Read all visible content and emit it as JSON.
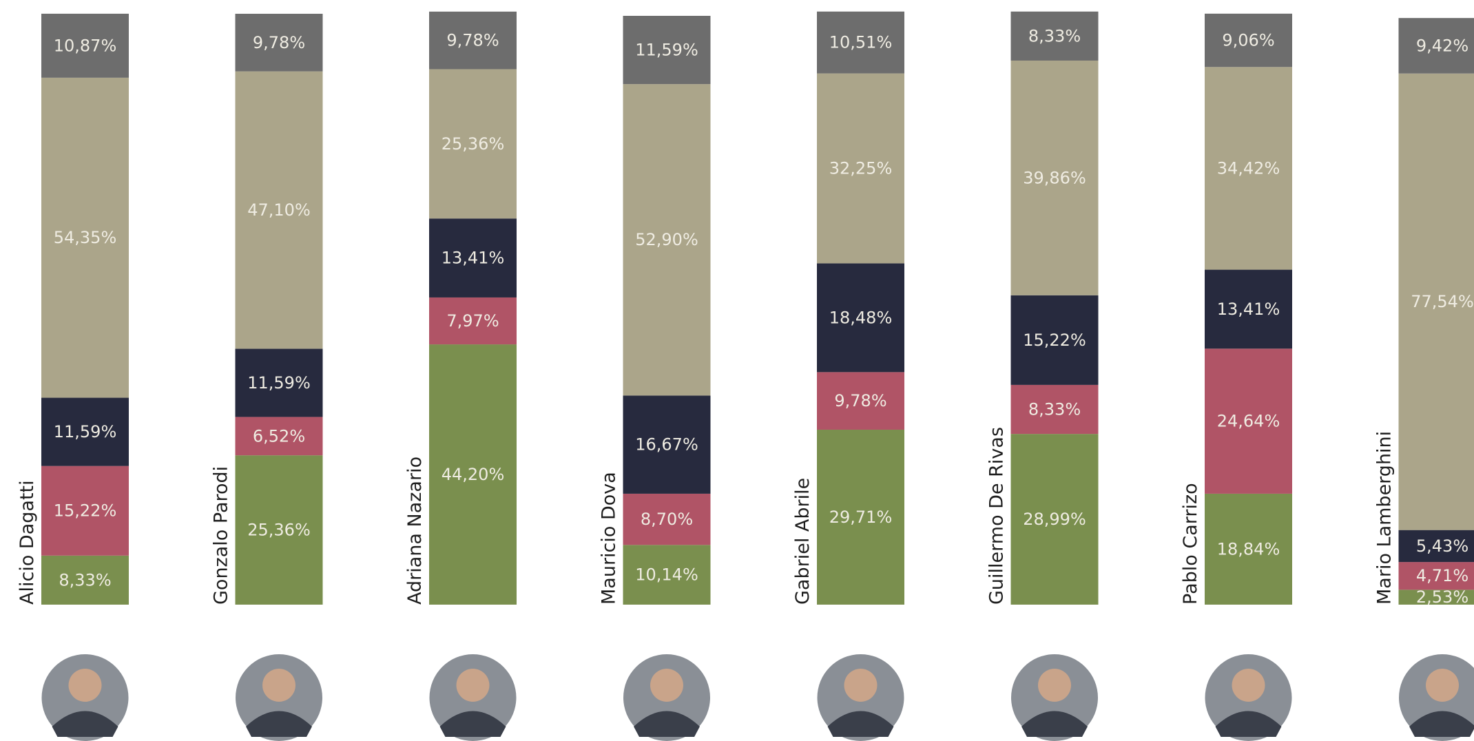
{
  "chart_data": {
    "type": "stacked-bar",
    "categories": [
      "Alicio Dagatti",
      "Gonzalo Parodi",
      "Adriana Nazario",
      "Mauricio Dova",
      "Gabriel Abrile",
      "Guillermo De Rivas",
      "Pablo Carrizo",
      "Mario Lamberghini"
    ],
    "series": [
      {
        "color": "#7a8f4e",
        "values": [
          8.33,
          25.36,
          44.2,
          10.14,
          29.71,
          28.99,
          18.84,
          2.53
        ],
        "value_labels": [
          "8,33%",
          "25,36%",
          "44,20%",
          "10,14%",
          "29,71%",
          "28,99%",
          "18,84%",
          "2,53%"
        ]
      },
      {
        "color": "#b05466",
        "values": [
          15.22,
          6.52,
          7.97,
          8.7,
          9.78,
          8.33,
          24.64,
          4.71
        ],
        "value_labels": [
          "15,22%",
          "6,52%",
          "7,97%",
          "8,70%",
          "9,78%",
          "8,33%",
          "24,64%",
          "4,71%"
        ]
      },
      {
        "color": "#272a3e",
        "values": [
          11.59,
          11.59,
          13.41,
          16.67,
          18.48,
          15.22,
          13.41,
          5.43
        ],
        "value_labels": [
          "11,59%",
          "11,59%",
          "13,41%",
          "16,67%",
          "18,48%",
          "15,22%",
          "13,41%",
          "5,43%"
        ]
      },
      {
        "color": "#aba58a",
        "values": [
          54.35,
          47.1,
          25.36,
          52.9,
          32.25,
          39.86,
          34.42,
          77.54
        ],
        "value_labels": [
          "54,35%",
          "47,10%",
          "25,36%",
          "52,90%",
          "32,25%",
          "39,86%",
          "34,42%",
          "77,54%"
        ]
      },
      {
        "color": "#6d6d6d",
        "values": [
          10.87,
          9.78,
          9.78,
          11.59,
          10.51,
          8.33,
          9.06,
          9.42
        ],
        "value_labels": [
          "10,87%",
          "9,78%",
          "9,78%",
          "11,59%",
          "10,51%",
          "8,33%",
          "9,06%",
          "9,42%"
        ]
      }
    ]
  }
}
